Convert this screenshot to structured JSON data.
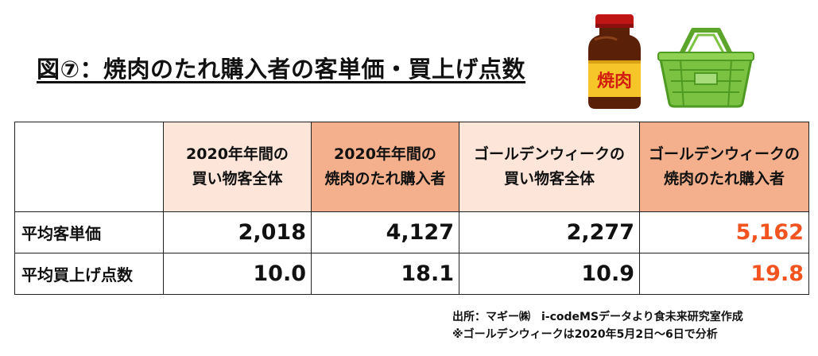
{
  "title": "図⑦：焼肉のたれ購入者の客単価・買上げ点数",
  "illustrations": {
    "bottle_label": "焼肉",
    "bottle_icon": "sauce-bottle-icon",
    "basket_icon": "shopping-basket-icon"
  },
  "table": {
    "corner": "",
    "headers": [
      {
        "line1": "2020年年間の",
        "line2": "買い物客全体"
      },
      {
        "line1": "2020年年間の",
        "line2": "焼肉のたれ購入者"
      },
      {
        "line1": "ゴールデンウィークの",
        "line2": "買い物客全体"
      },
      {
        "line1": "ゴールデンウィークの",
        "line2": "焼肉のたれ購入者"
      }
    ],
    "rows": [
      {
        "label": "平均客単価",
        "values": [
          "2,018",
          "4,127",
          "2,277",
          "5,162"
        ]
      },
      {
        "label": "平均買上げ点数",
        "values": [
          "10.0",
          "18.1",
          "10.9",
          "19.8"
        ]
      }
    ]
  },
  "colors": {
    "header_light": "#fde5d9",
    "header_dark": "#f4b08c",
    "highlight_text": "#f2531f",
    "basket_green": "#7cc242"
  },
  "source": {
    "line1": "出所：マギー㈱　i-codeMSデータより食未来研究室作成",
    "line2": "※ゴールデンウィークは2020年5月2日～6日で分析"
  }
}
